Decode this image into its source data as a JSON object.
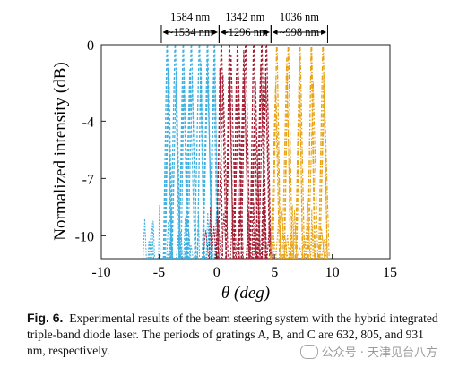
{
  "chart_data": {
    "type": "line",
    "title": "",
    "xlabel": "θ (deg)",
    "ylabel": "Normalized intensity (dB)",
    "xlim": [
      -10,
      15
    ],
    "ylim": [
      -11.2,
      0
    ],
    "xticks": [
      "-10",
      "-5",
      "0",
      "5",
      "10",
      "15"
    ],
    "yticks": [
      "0",
      "-4",
      "-7",
      "-10"
    ],
    "ytick_values": [
      0,
      -4,
      -7,
      -10
    ],
    "grid": false,
    "legend": "none",
    "series": [
      {
        "color": "#3FB1E0",
        "style": "dashed",
        "peaks": [
          -4.3,
          -3.6,
          -2.9,
          -2.2,
          -1.5,
          -0.8,
          -0.2
        ],
        "floor_range": [
          -6.6,
          0.0
        ]
      },
      {
        "color": "#A31F34",
        "style": "dashed",
        "peaks": [
          0.4,
          1.1,
          1.8,
          2.5,
          3.2,
          3.9,
          4.3
        ],
        "floor_range": [
          -1.0,
          4.6
        ]
      },
      {
        "color": "#E8A317",
        "style": "dashdot",
        "peaks": [
          5.2,
          6.2,
          7.2,
          8.2,
          9.2
        ],
        "floor_range": [
          4.8,
          9.7
        ]
      }
    ],
    "annotations": [
      {
        "line1": "1584 nm",
        "line2": "~1534 nm",
        "x_range": [
          -4.8,
          0.2
        ]
      },
      {
        "line1": "1342 nm",
        "line2": "~1296 nm",
        "x_range": [
          0.2,
          4.7
        ]
      },
      {
        "line1": "1036 nm",
        "line2": "~998 nm",
        "x_range": [
          4.7,
          9.6
        ]
      }
    ]
  },
  "caption": {
    "label": "Fig. 6.",
    "text": "Experimental results of the beam steering system with the hybrid integrated triple-band diode laser. The periods of gratings A, B, and C are 632, 805, and 931 nm, respectively."
  },
  "watermark": {
    "text": "公众号 · 天津见台八方"
  }
}
